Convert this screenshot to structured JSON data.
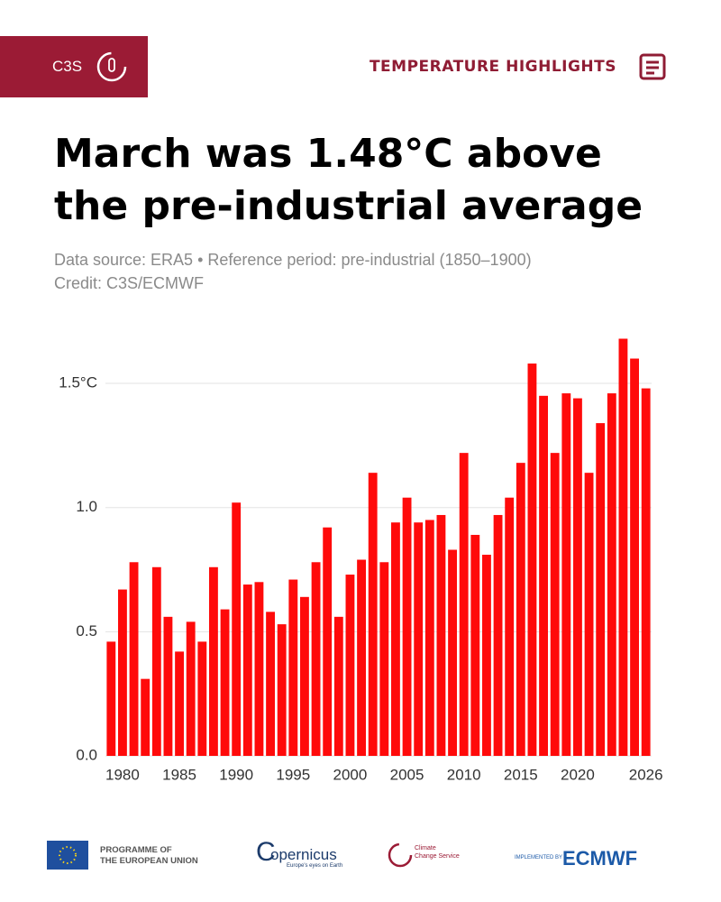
{
  "header": {
    "brand": "C3S",
    "section": "TEMPERATURE HIGHLIGHTS"
  },
  "chart_data": {
    "type": "bar",
    "title": "March was 1.48°C above the pre-industrial average",
    "subtitle": "Data source: ERA5 • Reference period: pre-industrial (1850–1900)",
    "credit": "Credit: C3S/ECMWF",
    "x": [
      1979,
      1980,
      1981,
      1982,
      1983,
      1984,
      1985,
      1986,
      1987,
      1988,
      1989,
      1990,
      1991,
      1992,
      1993,
      1994,
      1995,
      1996,
      1997,
      1998,
      1999,
      2000,
      2001,
      2002,
      2003,
      2004,
      2005,
      2006,
      2007,
      2008,
      2009,
      2010,
      2011,
      2012,
      2013,
      2014,
      2015,
      2016,
      2017,
      2018,
      2019,
      2020,
      2021,
      2022,
      2023,
      2024,
      2025,
      2026
    ],
    "values": [
      0.46,
      0.67,
      0.78,
      0.31,
      0.76,
      0.56,
      0.42,
      0.54,
      0.46,
      0.76,
      0.59,
      1.02,
      0.69,
      0.7,
      0.58,
      0.53,
      0.71,
      0.64,
      0.78,
      0.92,
      0.56,
      0.73,
      0.79,
      1.14,
      0.78,
      0.94,
      1.04,
      0.94,
      0.95,
      0.97,
      0.83,
      1.22,
      0.89,
      0.81,
      0.97,
      1.04,
      1.18,
      1.58,
      1.45,
      1.22,
      1.46,
      1.44,
      1.14,
      1.34,
      1.46,
      1.68,
      1.6,
      1.48
    ],
    "color": "#ff0a0a",
    "xlim": [
      1978.5,
      2026.5
    ],
    "xticks": [
      1980,
      1985,
      1990,
      1995,
      2000,
      2005,
      2010,
      2015,
      2020,
      2026
    ],
    "ylim": [
      0,
      1.7
    ],
    "yticks": [
      {
        "value": 0,
        "label": "0.0"
      },
      0.5,
      {
        "value": 1,
        "label": "1.0"
      },
      {
        "value": 1.5,
        "label": "1.5°C"
      }
    ],
    "grid": true
  },
  "footer": {
    "eu": [
      "PROGRAMME OF",
      "THE EUROPEAN UNION"
    ],
    "copernicus": "opernicus",
    "copernicus_tag": "Europe's eyes on Earth",
    "c3s": [
      "Climate",
      "Change Service"
    ],
    "implemented": "IMPLEMENTED BY",
    "ecmwf": "ECMWF"
  }
}
